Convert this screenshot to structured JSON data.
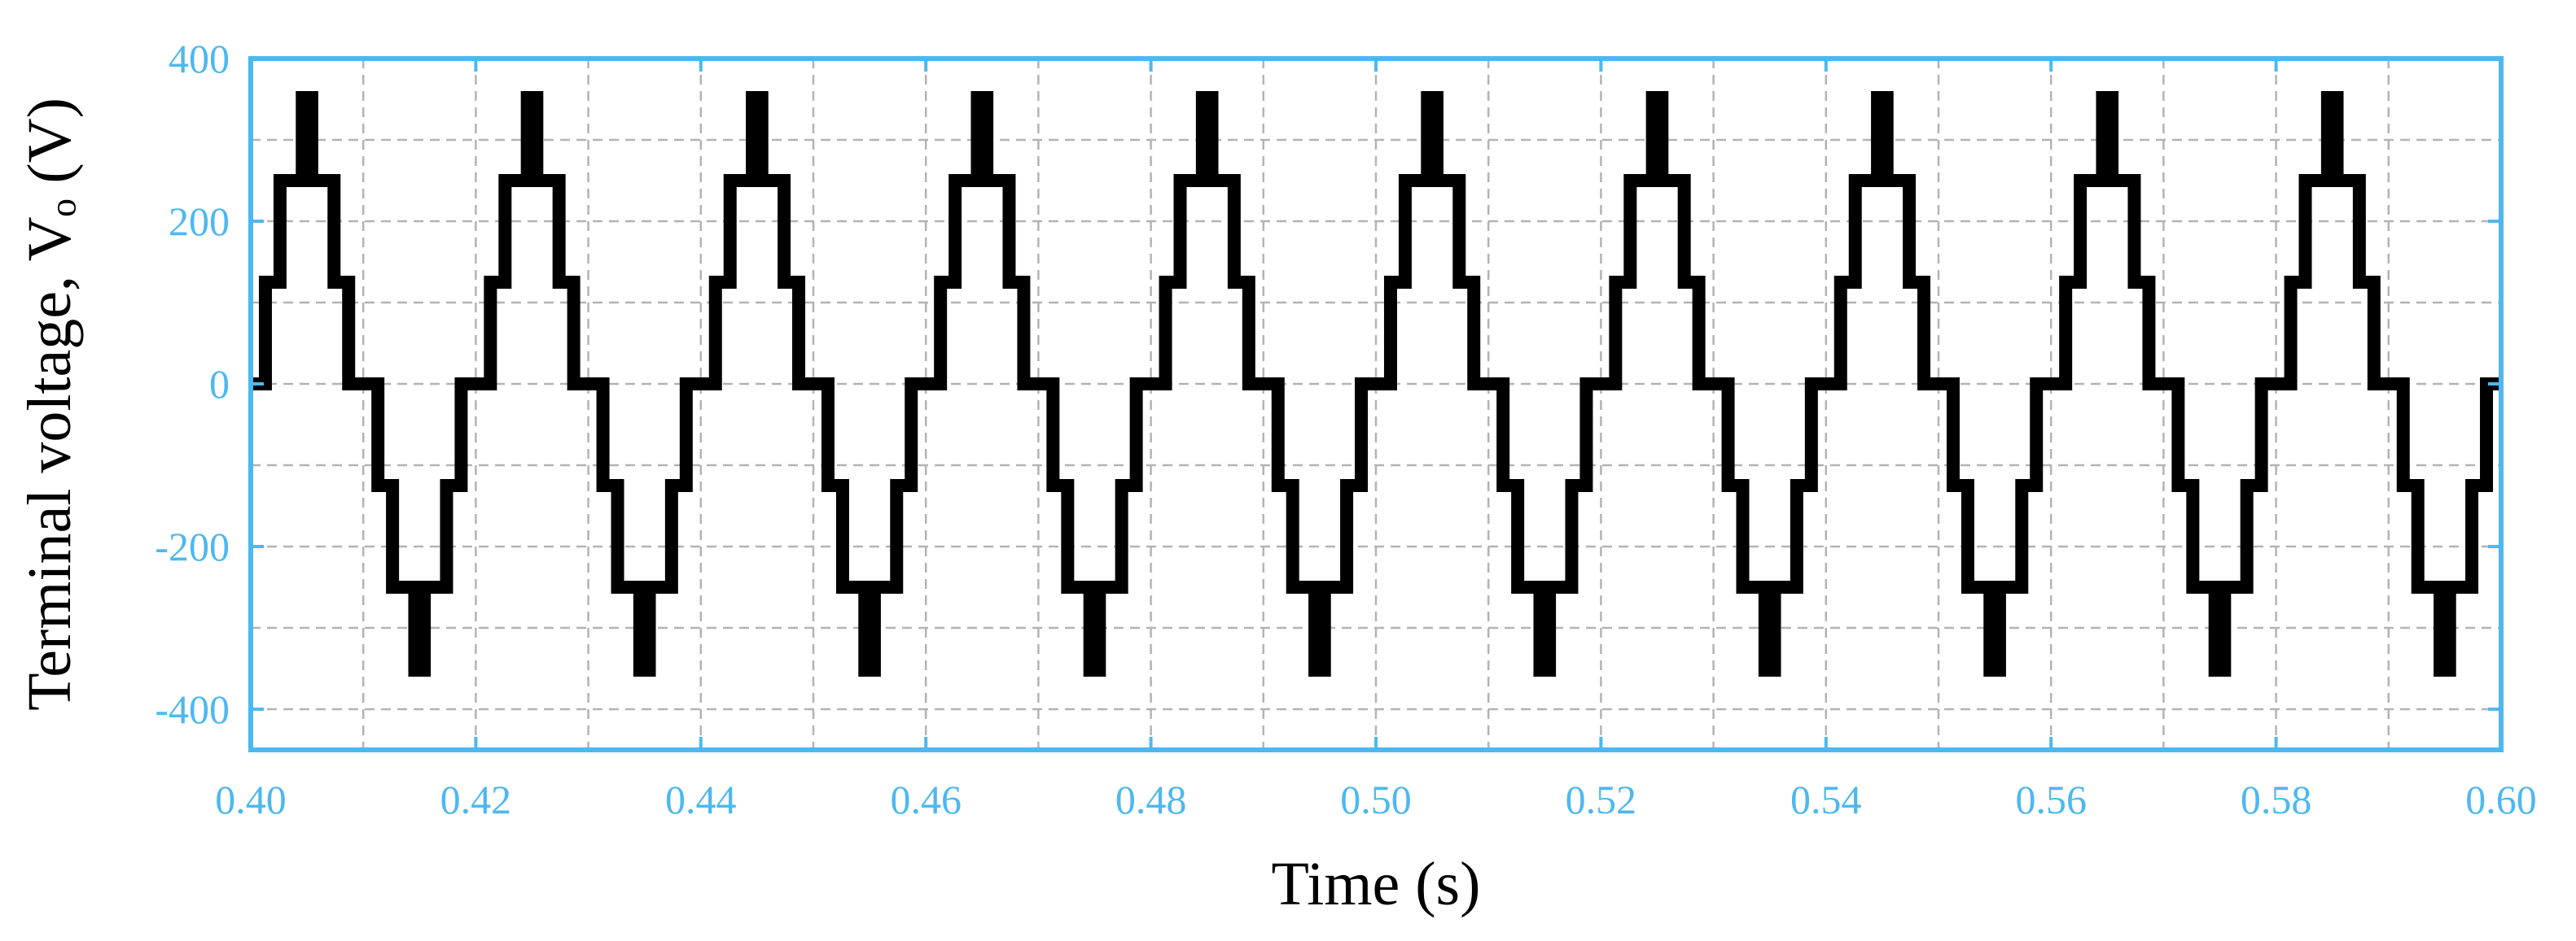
{
  "chart_data": {
    "type": "line",
    "title": "",
    "xlabel": "Time (s)",
    "ylabel": "Terminal voltage, Vₒ (V)",
    "xlim": [
      0.4,
      0.6
    ],
    "ylim": [
      -450,
      400
    ],
    "x_ticks": [
      "0.40",
      "0.42",
      "0.44",
      "0.46",
      "0.48",
      "0.50",
      "0.52",
      "0.54",
      "0.56",
      "0.58",
      "0.60"
    ],
    "y_ticks": [
      "400",
      "200",
      "0",
      "-200",
      "-400"
    ],
    "x_tick_values": [
      0.4,
      0.42,
      0.44,
      0.46,
      0.48,
      0.5,
      0.52,
      0.54,
      0.56,
      0.58,
      0.6
    ],
    "y_tick_values": [
      400,
      200,
      0,
      -200,
      -400
    ],
    "x_minor_grid": [
      0.41,
      0.43,
      0.45,
      0.47,
      0.49,
      0.51,
      0.53,
      0.55,
      0.57,
      0.59
    ],
    "y_minor_grid": [
      300,
      100,
      -100,
      -300
    ],
    "grid": true,
    "line_color": "#000000",
    "axis_color": "#4DB8F0",
    "series": [
      {
        "fundamental_hz": 50,
        "period_s": 0.02,
        "phase_start_s": 0.4,
        "levels_v": [
          0,
          125,
          250,
          360
        ],
        "positive_half_cycle": [
          {
            "t_start": 0.0,
            "t_end": 0.0013,
            "v": 0
          },
          {
            "t_start": 0.0013,
            "t_end": 0.0026,
            "v": 125
          },
          {
            "t_start": 0.0026,
            "t_end": 0.004,
            "v": 250
          },
          {
            "t_start": 0.004,
            "t_end": 0.006,
            "v_band": [
              250,
              360
            ]
          },
          {
            "t_start": 0.006,
            "t_end": 0.0074,
            "v": 250
          },
          {
            "t_start": 0.0074,
            "t_end": 0.0087,
            "v": 125
          },
          {
            "t_start": 0.0087,
            "t_end": 0.01,
            "v": 0
          }
        ],
        "negative_half_cycle": [
          {
            "t_start": 0.01,
            "t_end": 0.0113,
            "v": 0
          },
          {
            "t_start": 0.0113,
            "t_end": 0.0126,
            "v": -125
          },
          {
            "t_start": 0.0126,
            "t_end": 0.014,
            "v": -250
          },
          {
            "t_start": 0.014,
            "t_end": 0.016,
            "v_band": [
              -250,
              -360
            ]
          },
          {
            "t_start": 0.016,
            "t_end": 0.0174,
            "v": -250
          },
          {
            "t_start": 0.0174,
            "t_end": 0.0187,
            "v": -125
          },
          {
            "t_start": 0.0187,
            "t_end": 0.02,
            "v": 0
          }
        ]
      }
    ]
  }
}
